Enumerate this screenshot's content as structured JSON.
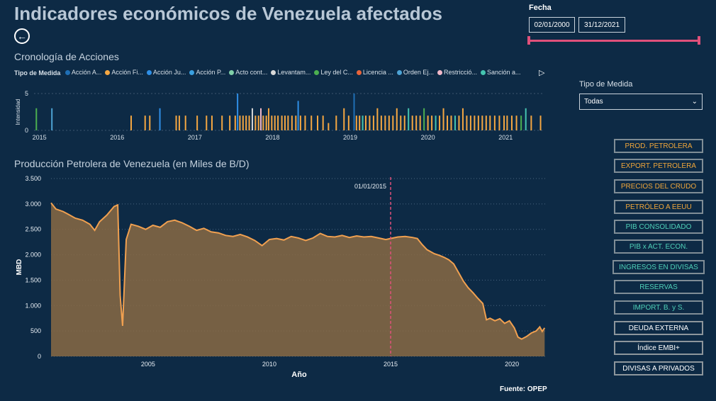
{
  "header": {
    "title": "Indicadores económicos de Venezuela afectados",
    "fecha_label": "Fecha",
    "date_start": "02/01/2000",
    "date_end": "31/12/2021"
  },
  "timeline": {
    "title": "Cronología de Acciones",
    "legend_title": "Tipo de Medida",
    "legend": [
      {
        "label": "Acción A...",
        "color": "#1f6fb5"
      },
      {
        "label": "Acción Fi...",
        "color": "#f5a742"
      },
      {
        "label": "Acción Ju...",
        "color": "#2f8fe6"
      },
      {
        "label": "Acción P...",
        "color": "#3aa0e0"
      },
      {
        "label": "Acto cont...",
        "color": "#7fcfa8"
      },
      {
        "label": "Levantam...",
        "color": "#d8d8d8"
      },
      {
        "label": "Ley del C...",
        "color": "#4caf50"
      },
      {
        "label": "Licencia ...",
        "color": "#e8643a"
      },
      {
        "label": "Orden Ej...",
        "color": "#4da3d4"
      },
      {
        "label": "Restricció...",
        "color": "#f0b8c8"
      },
      {
        "label": "Sanción a...",
        "color": "#45c4b0"
      }
    ],
    "y_axis_label": "Intensidad"
  },
  "filter": {
    "label": "Tipo de Medida",
    "selected": "Todas"
  },
  "buttons": [
    {
      "label": "PROD. PETROLERA",
      "color": "#f0a63a",
      "active": true
    },
    {
      "label": "EXPORT. PETROLERA",
      "color": "#f0a63a",
      "active": true
    },
    {
      "label": "PRECIOS DEL CRUDO",
      "color": "#f0a63a",
      "active": true
    },
    {
      "label": "PETRÓLEO A EEUU",
      "color": "#f0a63a",
      "active": true
    },
    {
      "label": "PIB CONSOLIDADO",
      "color": "#4fd1b8",
      "active": true
    },
    {
      "label": "PIB x ACT. ECON.",
      "color": "#4fd1b8",
      "active": true
    },
    {
      "label": "INGRESOS EN DIVISAS",
      "color": "#4fd1b8",
      "active": true
    },
    {
      "label": "RESERVAS",
      "color": "#4fd1b8",
      "active": true
    },
    {
      "label": "IMPORT. B. y S.",
      "color": "#4fd1b8",
      "active": true
    },
    {
      "label": "DEUDA EXTERNA",
      "color": "#ffffff",
      "active": false
    },
    {
      "label": "Índice EMBI+",
      "color": "#ffffff",
      "active": false
    },
    {
      "label": "DIVISAS A PRIVADOS",
      "color": "#ffffff",
      "active": false
    }
  ],
  "source": "Fuente: OPEP",
  "chart_data": [
    {
      "type": "bar",
      "title": "Cronología de Acciones",
      "ylabel": "Intensidad",
      "xlabel": "",
      "ylim": [
        0,
        5
      ],
      "yticks": [
        0,
        5
      ],
      "x_tick_labels": [
        "2015",
        "2016",
        "2017",
        "2018",
        "2019",
        "2020",
        "2021"
      ],
      "x_range": [
        2014.93,
        2021.5
      ],
      "bars": [
        {
          "x": 2014.96,
          "y": 3,
          "color": "#4caf50"
        },
        {
          "x": 2015.16,
          "y": 3,
          "color": "#4da3d4"
        },
        {
          "x": 2016.18,
          "y": 2,
          "color": "#f5a742"
        },
        {
          "x": 2016.36,
          "y": 2,
          "color": "#f5a742"
        },
        {
          "x": 2016.42,
          "y": 2,
          "color": "#f5a742"
        },
        {
          "x": 2016.55,
          "y": 3,
          "color": "#2f8fe6"
        },
        {
          "x": 2016.76,
          "y": 2,
          "color": "#f5a742"
        },
        {
          "x": 2016.8,
          "y": 2,
          "color": "#f5a742"
        },
        {
          "x": 2016.88,
          "y": 2,
          "color": "#f5a742"
        },
        {
          "x": 2017.03,
          "y": 2,
          "color": "#f5a742"
        },
        {
          "x": 2017.15,
          "y": 2,
          "color": "#f5a742"
        },
        {
          "x": 2017.22,
          "y": 2,
          "color": "#f5a742"
        },
        {
          "x": 2017.35,
          "y": 2,
          "color": "#f5a742"
        },
        {
          "x": 2017.45,
          "y": 2,
          "color": "#f5a742"
        },
        {
          "x": 2017.52,
          "y": 2,
          "color": "#f5a742"
        },
        {
          "x": 2017.55,
          "y": 5,
          "color": "#2f8fe6"
        },
        {
          "x": 2017.58,
          "y": 2,
          "color": "#f5a742"
        },
        {
          "x": 2017.62,
          "y": 2,
          "color": "#f5a742"
        },
        {
          "x": 2017.66,
          "y": 2,
          "color": "#f5a742"
        },
        {
          "x": 2017.7,
          "y": 2,
          "color": "#f5a742"
        },
        {
          "x": 2017.74,
          "y": 3,
          "color": "#d8d8d8"
        },
        {
          "x": 2017.78,
          "y": 2,
          "color": "#f5a742"
        },
        {
          "x": 2017.82,
          "y": 2,
          "color": "#f5a742"
        },
        {
          "x": 2017.85,
          "y": 3,
          "color": "#f0b8c8"
        },
        {
          "x": 2017.88,
          "y": 2,
          "color": "#f5a742"
        },
        {
          "x": 2017.92,
          "y": 2,
          "color": "#f5a742"
        },
        {
          "x": 2017.95,
          "y": 3,
          "color": "#f5a742"
        },
        {
          "x": 2017.99,
          "y": 2,
          "color": "#f5a742"
        },
        {
          "x": 2018.03,
          "y": 2,
          "color": "#f5a742"
        },
        {
          "x": 2018.07,
          "y": 2,
          "color": "#f5a742"
        },
        {
          "x": 2018.12,
          "y": 2,
          "color": "#f5a742"
        },
        {
          "x": 2018.16,
          "y": 2,
          "color": "#f5a742"
        },
        {
          "x": 2018.2,
          "y": 2,
          "color": "#f5a742"
        },
        {
          "x": 2018.25,
          "y": 2,
          "color": "#f5a742"
        },
        {
          "x": 2018.3,
          "y": 2,
          "color": "#f5a742"
        },
        {
          "x": 2018.33,
          "y": 4,
          "color": "#2f8fe6"
        },
        {
          "x": 2018.36,
          "y": 2,
          "color": "#f5a742"
        },
        {
          "x": 2018.42,
          "y": 2,
          "color": "#f5a742"
        },
        {
          "x": 2018.5,
          "y": 2,
          "color": "#f5a742"
        },
        {
          "x": 2018.58,
          "y": 2,
          "color": "#f5a742"
        },
        {
          "x": 2018.65,
          "y": 2,
          "color": "#f5a742"
        },
        {
          "x": 2018.72,
          "y": 1,
          "color": "#f5a742"
        },
        {
          "x": 2018.82,
          "y": 2,
          "color": "#f5a742"
        },
        {
          "x": 2018.92,
          "y": 3,
          "color": "#f5a742"
        },
        {
          "x": 2018.98,
          "y": 2,
          "color": "#f5a742"
        },
        {
          "x": 2019.05,
          "y": 5,
          "color": "#1f6fb5"
        },
        {
          "x": 2019.08,
          "y": 2,
          "color": "#f5a742"
        },
        {
          "x": 2019.12,
          "y": 2,
          "color": "#f5a742"
        },
        {
          "x": 2019.16,
          "y": 2,
          "color": "#45c4b0"
        },
        {
          "x": 2019.2,
          "y": 2,
          "color": "#f5a742"
        },
        {
          "x": 2019.25,
          "y": 2,
          "color": "#f5a742"
        },
        {
          "x": 2019.3,
          "y": 2,
          "color": "#f5a742"
        },
        {
          "x": 2019.35,
          "y": 3,
          "color": "#f5a742"
        },
        {
          "x": 2019.4,
          "y": 2,
          "color": "#f5a742"
        },
        {
          "x": 2019.45,
          "y": 2,
          "color": "#f5a742"
        },
        {
          "x": 2019.5,
          "y": 2,
          "color": "#f5a742"
        },
        {
          "x": 2019.55,
          "y": 2,
          "color": "#f5a742"
        },
        {
          "x": 2019.6,
          "y": 3,
          "color": "#f5a742"
        },
        {
          "x": 2019.65,
          "y": 2,
          "color": "#f5a742"
        },
        {
          "x": 2019.7,
          "y": 2,
          "color": "#f5a742"
        },
        {
          "x": 2019.75,
          "y": 3,
          "color": "#45c4b0"
        },
        {
          "x": 2019.8,
          "y": 2,
          "color": "#f5a742"
        },
        {
          "x": 2019.85,
          "y": 2,
          "color": "#f5a742"
        },
        {
          "x": 2019.9,
          "y": 2,
          "color": "#f5a742"
        },
        {
          "x": 2019.95,
          "y": 3,
          "color": "#4caf50"
        },
        {
          "x": 2020.0,
          "y": 2,
          "color": "#f5a742"
        },
        {
          "x": 2020.05,
          "y": 2,
          "color": "#f5a742"
        },
        {
          "x": 2020.1,
          "y": 2,
          "color": "#45c4b0"
        },
        {
          "x": 2020.15,
          "y": 2,
          "color": "#f5a742"
        },
        {
          "x": 2020.2,
          "y": 3,
          "color": "#f5a742"
        },
        {
          "x": 2020.25,
          "y": 2,
          "color": "#f5a742"
        },
        {
          "x": 2020.3,
          "y": 2,
          "color": "#f5a742"
        },
        {
          "x": 2020.35,
          "y": 2,
          "color": "#45c4b0"
        },
        {
          "x": 2020.4,
          "y": 2,
          "color": "#f5a742"
        },
        {
          "x": 2020.45,
          "y": 3,
          "color": "#f5a742"
        },
        {
          "x": 2020.5,
          "y": 2,
          "color": "#f5a742"
        },
        {
          "x": 2020.55,
          "y": 2,
          "color": "#f5a742"
        },
        {
          "x": 2020.6,
          "y": 2,
          "color": "#f5a742"
        },
        {
          "x": 2020.65,
          "y": 2,
          "color": "#f5a742"
        },
        {
          "x": 2020.7,
          "y": 2,
          "color": "#f5a742"
        },
        {
          "x": 2020.75,
          "y": 2,
          "color": "#f5a742"
        },
        {
          "x": 2020.8,
          "y": 2,
          "color": "#f5a742"
        },
        {
          "x": 2020.86,
          "y": 2,
          "color": "#f5a742"
        },
        {
          "x": 2020.92,
          "y": 2,
          "color": "#f5a742"
        },
        {
          "x": 2020.98,
          "y": 2,
          "color": "#f5a742"
        },
        {
          "x": 2021.02,
          "y": 2,
          "color": "#f5a742"
        },
        {
          "x": 2021.08,
          "y": 2,
          "color": "#f5a742"
        },
        {
          "x": 2021.14,
          "y": 2,
          "color": "#f5a742"
        },
        {
          "x": 2021.2,
          "y": 2,
          "color": "#4caf50"
        },
        {
          "x": 2021.26,
          "y": 3,
          "color": "#45c4b0"
        },
        {
          "x": 2021.33,
          "y": 2,
          "color": "#f5a742"
        },
        {
          "x": 2021.45,
          "y": 2,
          "color": "#f5a742"
        }
      ]
    },
    {
      "type": "area",
      "title": "Producción Petrolera de Venezuela (en Miles de B/D)",
      "xlabel": "Año",
      "ylabel": "MBD",
      "x_range": [
        2001.0,
        2021.4
      ],
      "ylim": [
        0,
        3500
      ],
      "yticks": [
        0,
        500,
        1000,
        1500,
        2000,
        2500,
        3000,
        3500
      ],
      "ytick_labels": [
        "0",
        "500",
        "1.000",
        "1.500",
        "2.000",
        "2.500",
        "3.000",
        "3.500"
      ],
      "x_tick_labels": [
        "2005",
        "2010",
        "2015",
        "2020"
      ],
      "reference_line": {
        "x": 2015.0,
        "label": "01/01/2015"
      },
      "color": "#f0a050",
      "fill": "#8a6a44",
      "points": [
        [
          2001.0,
          3020
        ],
        [
          2001.2,
          2900
        ],
        [
          2001.5,
          2850
        ],
        [
          2001.7,
          2800
        ],
        [
          2002.0,
          2720
        ],
        [
          2002.3,
          2680
        ],
        [
          2002.6,
          2600
        ],
        [
          2002.8,
          2480
        ],
        [
          2003.0,
          2650
        ],
        [
          2003.3,
          2780
        ],
        [
          2003.6,
          2950
        ],
        [
          2003.75,
          2980
        ],
        [
          2003.85,
          1200
        ],
        [
          2003.95,
          600
        ],
        [
          2004.1,
          2300
        ],
        [
          2004.3,
          2600
        ],
        [
          2004.6,
          2560
        ],
        [
          2004.9,
          2500
        ],
        [
          2005.2,
          2580
        ],
        [
          2005.5,
          2540
        ],
        [
          2005.8,
          2650
        ],
        [
          2006.1,
          2680
        ],
        [
          2006.4,
          2630
        ],
        [
          2006.7,
          2560
        ],
        [
          2007.0,
          2480
        ],
        [
          2007.3,
          2520
        ],
        [
          2007.6,
          2450
        ],
        [
          2007.9,
          2430
        ],
        [
          2008.2,
          2380
        ],
        [
          2008.5,
          2360
        ],
        [
          2008.8,
          2400
        ],
        [
          2009.1,
          2350
        ],
        [
          2009.4,
          2280
        ],
        [
          2009.7,
          2180
        ],
        [
          2010.0,
          2300
        ],
        [
          2010.3,
          2320
        ],
        [
          2010.6,
          2290
        ],
        [
          2010.9,
          2360
        ],
        [
          2011.2,
          2330
        ],
        [
          2011.5,
          2280
        ],
        [
          2011.8,
          2330
        ],
        [
          2012.1,
          2420
        ],
        [
          2012.4,
          2360
        ],
        [
          2012.7,
          2350
        ],
        [
          2013.0,
          2380
        ],
        [
          2013.3,
          2340
        ],
        [
          2013.6,
          2370
        ],
        [
          2013.9,
          2350
        ],
        [
          2014.2,
          2360
        ],
        [
          2014.5,
          2330
        ],
        [
          2014.8,
          2300
        ],
        [
          2015.0,
          2320
        ],
        [
          2015.3,
          2350
        ],
        [
          2015.6,
          2360
        ],
        [
          2015.9,
          2340
        ],
        [
          2016.1,
          2320
        ],
        [
          2016.3,
          2200
        ],
        [
          2016.5,
          2100
        ],
        [
          2016.8,
          2020
        ],
        [
          2017.0,
          1990
        ],
        [
          2017.2,
          1950
        ],
        [
          2017.4,
          1900
        ],
        [
          2017.6,
          1820
        ],
        [
          2017.8,
          1650
        ],
        [
          2018.0,
          1480
        ],
        [
          2018.2,
          1350
        ],
        [
          2018.4,
          1250
        ],
        [
          2018.6,
          1140
        ],
        [
          2018.8,
          1040
        ],
        [
          2018.95,
          720
        ],
        [
          2019.1,
          750
        ],
        [
          2019.3,
          700
        ],
        [
          2019.5,
          740
        ],
        [
          2019.7,
          650
        ],
        [
          2019.9,
          700
        ],
        [
          2020.1,
          560
        ],
        [
          2020.25,
          380
        ],
        [
          2020.4,
          340
        ],
        [
          2020.6,
          390
        ],
        [
          2020.8,
          460
        ],
        [
          2021.0,
          500
        ],
        [
          2021.15,
          580
        ],
        [
          2021.25,
          490
        ],
        [
          2021.35,
          560
        ]
      ]
    }
  ]
}
